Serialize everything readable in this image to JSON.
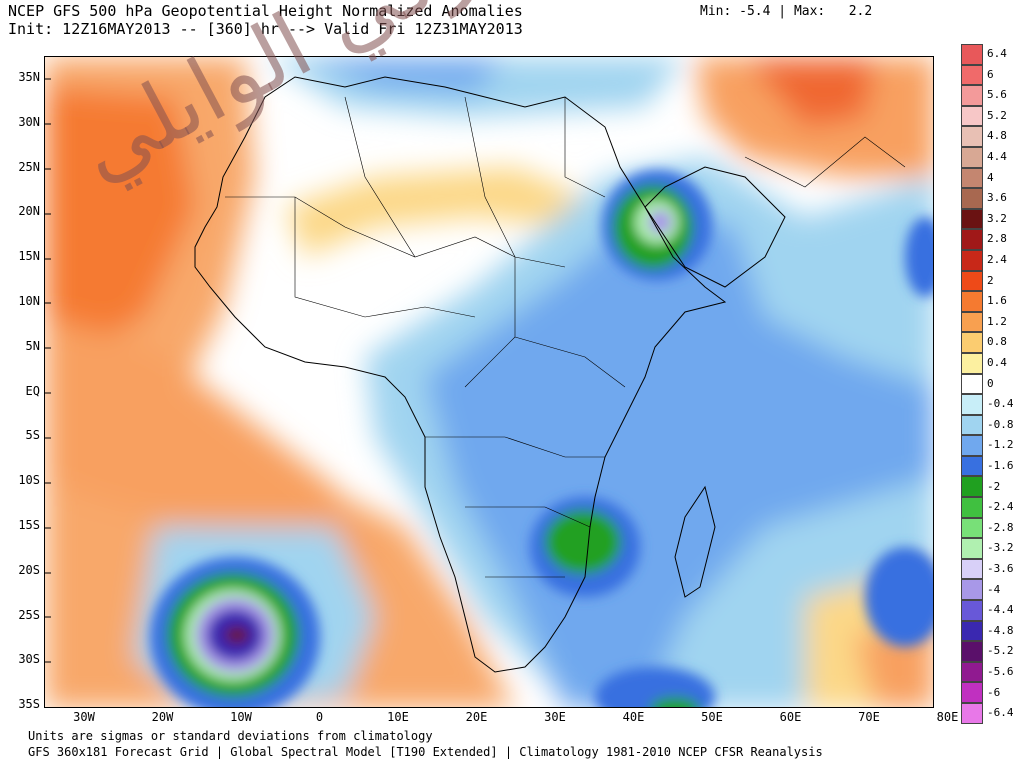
{
  "header": {
    "title": "NCEP GFS 500 hPa Geopotential Height Normalized Anomalies",
    "init_line": "Init: 12Z16MAY2013 -- [360] hr --> Valid Fri 12Z31MAY2013",
    "min_label": "Min:",
    "min_value": "-5.4",
    "separator": "|",
    "max_label": "Max:",
    "max_value": "2.2"
  },
  "map": {
    "lat_labels": [
      "35N",
      "30N",
      "25N",
      "20N",
      "15N",
      "10N",
      "5N",
      "EQ",
      "5S",
      "10S",
      "15S",
      "20S",
      "25S",
      "30S",
      "35S"
    ],
    "lon_labels": [
      "30W",
      "20W",
      "10W",
      "0",
      "10E",
      "20E",
      "30E",
      "40E",
      "50E",
      "60E",
      "70E",
      "80E"
    ]
  },
  "colorbar": {
    "labels": [
      "6.4",
      "6",
      "5.6",
      "5.2",
      "4.8",
      "4.4",
      "4",
      "3.6",
      "3.2",
      "2.8",
      "2.4",
      "2",
      "1.6",
      "1.2",
      "0.8",
      "0.4",
      "0",
      "-0.4",
      "-0.8",
      "-1.2",
      "-1.6",
      "-2",
      "-2.4",
      "-2.8",
      "-3.2",
      "-3.6",
      "-4",
      "-4.4",
      "-4.8",
      "-5.2",
      "-5.6",
      "-6",
      "-6.4"
    ],
    "colors": [
      "#e8585a",
      "#f06a6a",
      "#f39a9a",
      "#f7c7c7",
      "#e8c0b4",
      "#d8a894",
      "#c48670",
      "#a86850",
      "#6a1212",
      "#a01818",
      "#c82818",
      "#ee4a18",
      "#f57a30",
      "#f8a050",
      "#fbcc70",
      "#fcf0a0",
      "#ffffff",
      "#c8eef8",
      "#a0d4f0",
      "#70a8ee",
      "#3870e0",
      "#20a020",
      "#40c040",
      "#78e078",
      "#b0f0b0",
      "#d8d0f8",
      "#a898e8",
      "#6858d8",
      "#3a28b0",
      "#5a106a",
      "#901a90",
      "#c030c0",
      "#e878e8"
    ]
  },
  "footer": {
    "line1": "Units are sigmas or standard deviations from climatology",
    "line2": "GFS 360x181 Forecast Grid | Global Spectral Model [T190 Extended] | Climatology 1981-2010 NCEP CFSR Reanalysis"
  },
  "watermark_text": "تركي الوايلي"
}
